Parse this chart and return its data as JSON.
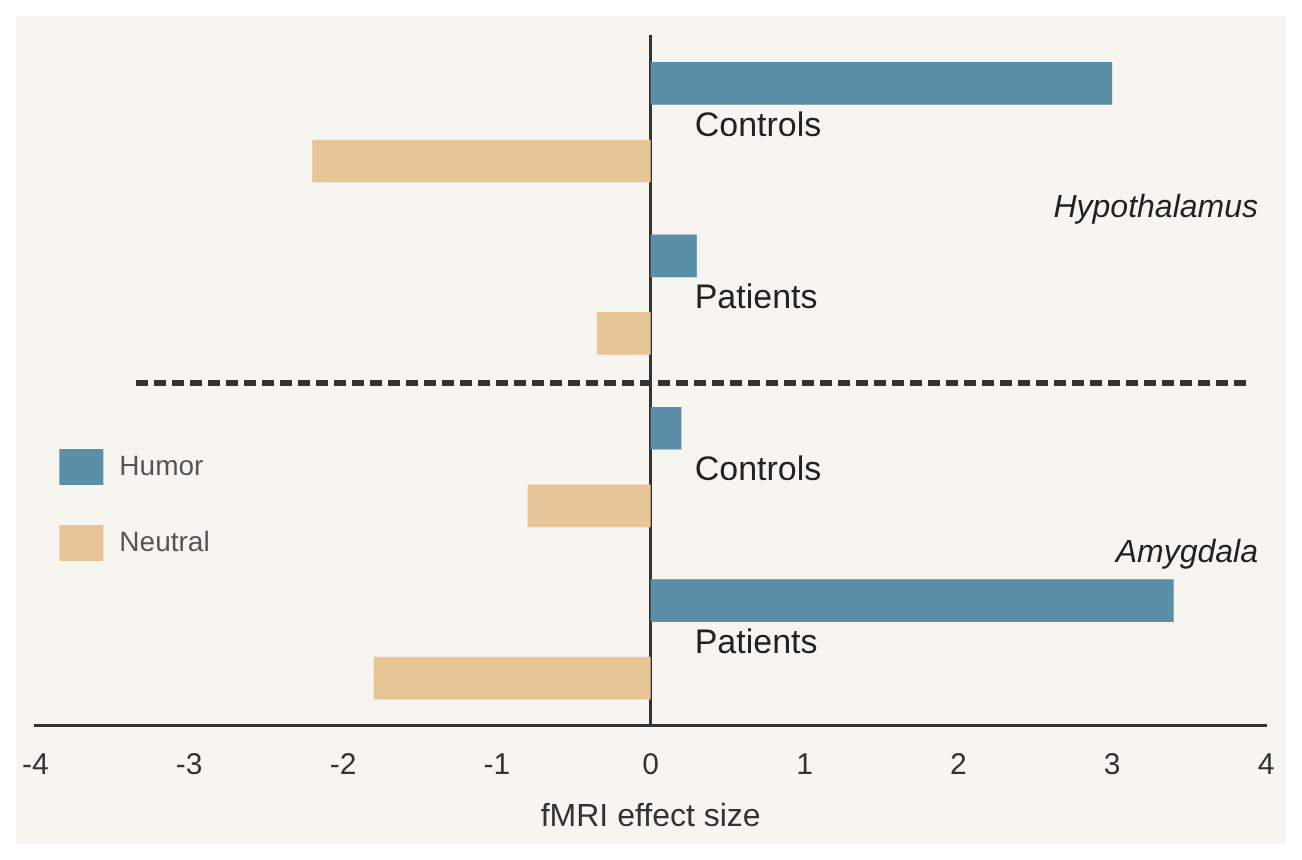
{
  "chart_data": {
    "type": "bar",
    "orientation": "horizontal",
    "xlabel": "fMRI effect size",
    "categories": [
      "Controls",
      "Patients",
      "Controls",
      "Patients"
    ],
    "series": [
      {
        "name": "Humor",
        "color": "#5b8fa8",
        "values": [
          3.0,
          0.3,
          0.2,
          3.4
        ]
      },
      {
        "name": "Neutral",
        "color": "#e8c596",
        "values": [
          -2.2,
          -0.35,
          -0.8,
          -1.8
        ]
      }
    ],
    "xlim": [
      -4,
      4
    ],
    "xticks": [
      -4,
      -3,
      -2,
      -1,
      0,
      1,
      2,
      3,
      4
    ],
    "grid": false,
    "legend": "bottom left",
    "annotations": [
      "Hypothalamus",
      "Amygdala"
    ]
  }
}
